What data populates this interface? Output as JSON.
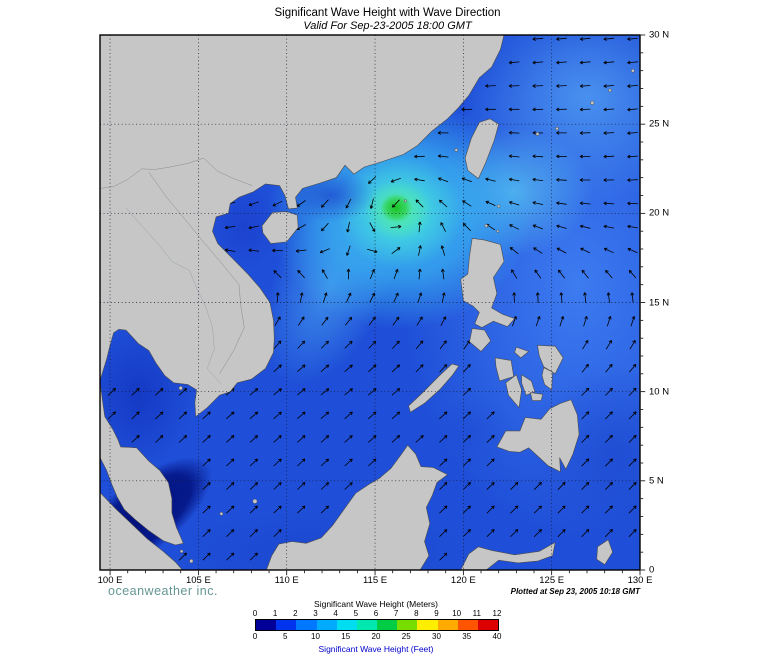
{
  "header": {
    "title": "Significant Wave Height with Wave Direction",
    "subtitle": "Valid For Sep-23-2005 18:00 GMT"
  },
  "map": {
    "lat_ticks": [
      "30 N",
      "25 N",
      "20 N",
      "15 N",
      "10 N",
      "5 N",
      "0"
    ],
    "lon_ticks": [
      "100 E",
      "105 E",
      "110 E",
      "115 E",
      "120 E",
      "125 E",
      "130 E"
    ],
    "lon_range": [
      99.43,
      130
    ],
    "lat_range": [
      0,
      30
    ],
    "land_color": "#c6c6c6",
    "coast_color": "#4a4a4a",
    "ocean_base_color": "#1f4fd8",
    "grid_color": "#15152a"
  },
  "footer": {
    "brand": "oceanweather inc.",
    "plotted": "Plotted at Sep 23, 2005 10:18 GMT"
  },
  "colorbar": {
    "meters_label": "Significant Wave Height (Meters)",
    "feet_label": "Significant Wave Height (Feet)",
    "meters_ticks": [
      "0",
      "1",
      "2",
      "3",
      "4",
      "5",
      "6",
      "7",
      "8",
      "9",
      "10",
      "11",
      "12"
    ],
    "feet_ticks": [
      "0",
      "5",
      "10",
      "15",
      "20",
      "25",
      "30",
      "35",
      "40"
    ],
    "colors": [
      "#000099",
      "#0033ee",
      "#0077ff",
      "#00aaff",
      "#00dcf0",
      "#00e8b0",
      "#00cc44",
      "#77dd00",
      "#ffee00",
      "#ffaa00",
      "#ff5500",
      "#dd0000"
    ]
  },
  "chart_data": {
    "type": "heatmap",
    "title": "Significant Wave Height with Wave Direction",
    "valid_time": "Sep-23-2005 18:00 GMT",
    "plotted_time": "Sep 23, 2005 10:18 GMT",
    "x_ticks_lon_e": [
      100,
      105,
      110,
      115,
      120,
      125,
      130
    ],
    "y_ticks_lat_n": [
      0,
      5,
      10,
      15,
      20,
      25,
      30
    ],
    "scale_meters": [
      0,
      1,
      2,
      3,
      4,
      5,
      6,
      7,
      8,
      9,
      10,
      11,
      12
    ],
    "scale_feet": [
      0,
      5,
      10,
      15,
      20,
      25,
      30,
      35,
      40
    ],
    "storm_center": {
      "lon_e": 116.4,
      "lat_n": 20.1,
      "peak_height_m": 6
    },
    "field_summary": "Most of South China Sea 1-2 m; cyan-green maximum (~5-6 m) near 116E 20N with counterclockwise wave-direction swirl; lighter blue 2-3 m in Pacific east of Taiwan and Luzon; darkest (<0.5 m) in Malacca Strait and Gulf of Thailand",
    "vector_overlay": "wave direction arrows"
  }
}
